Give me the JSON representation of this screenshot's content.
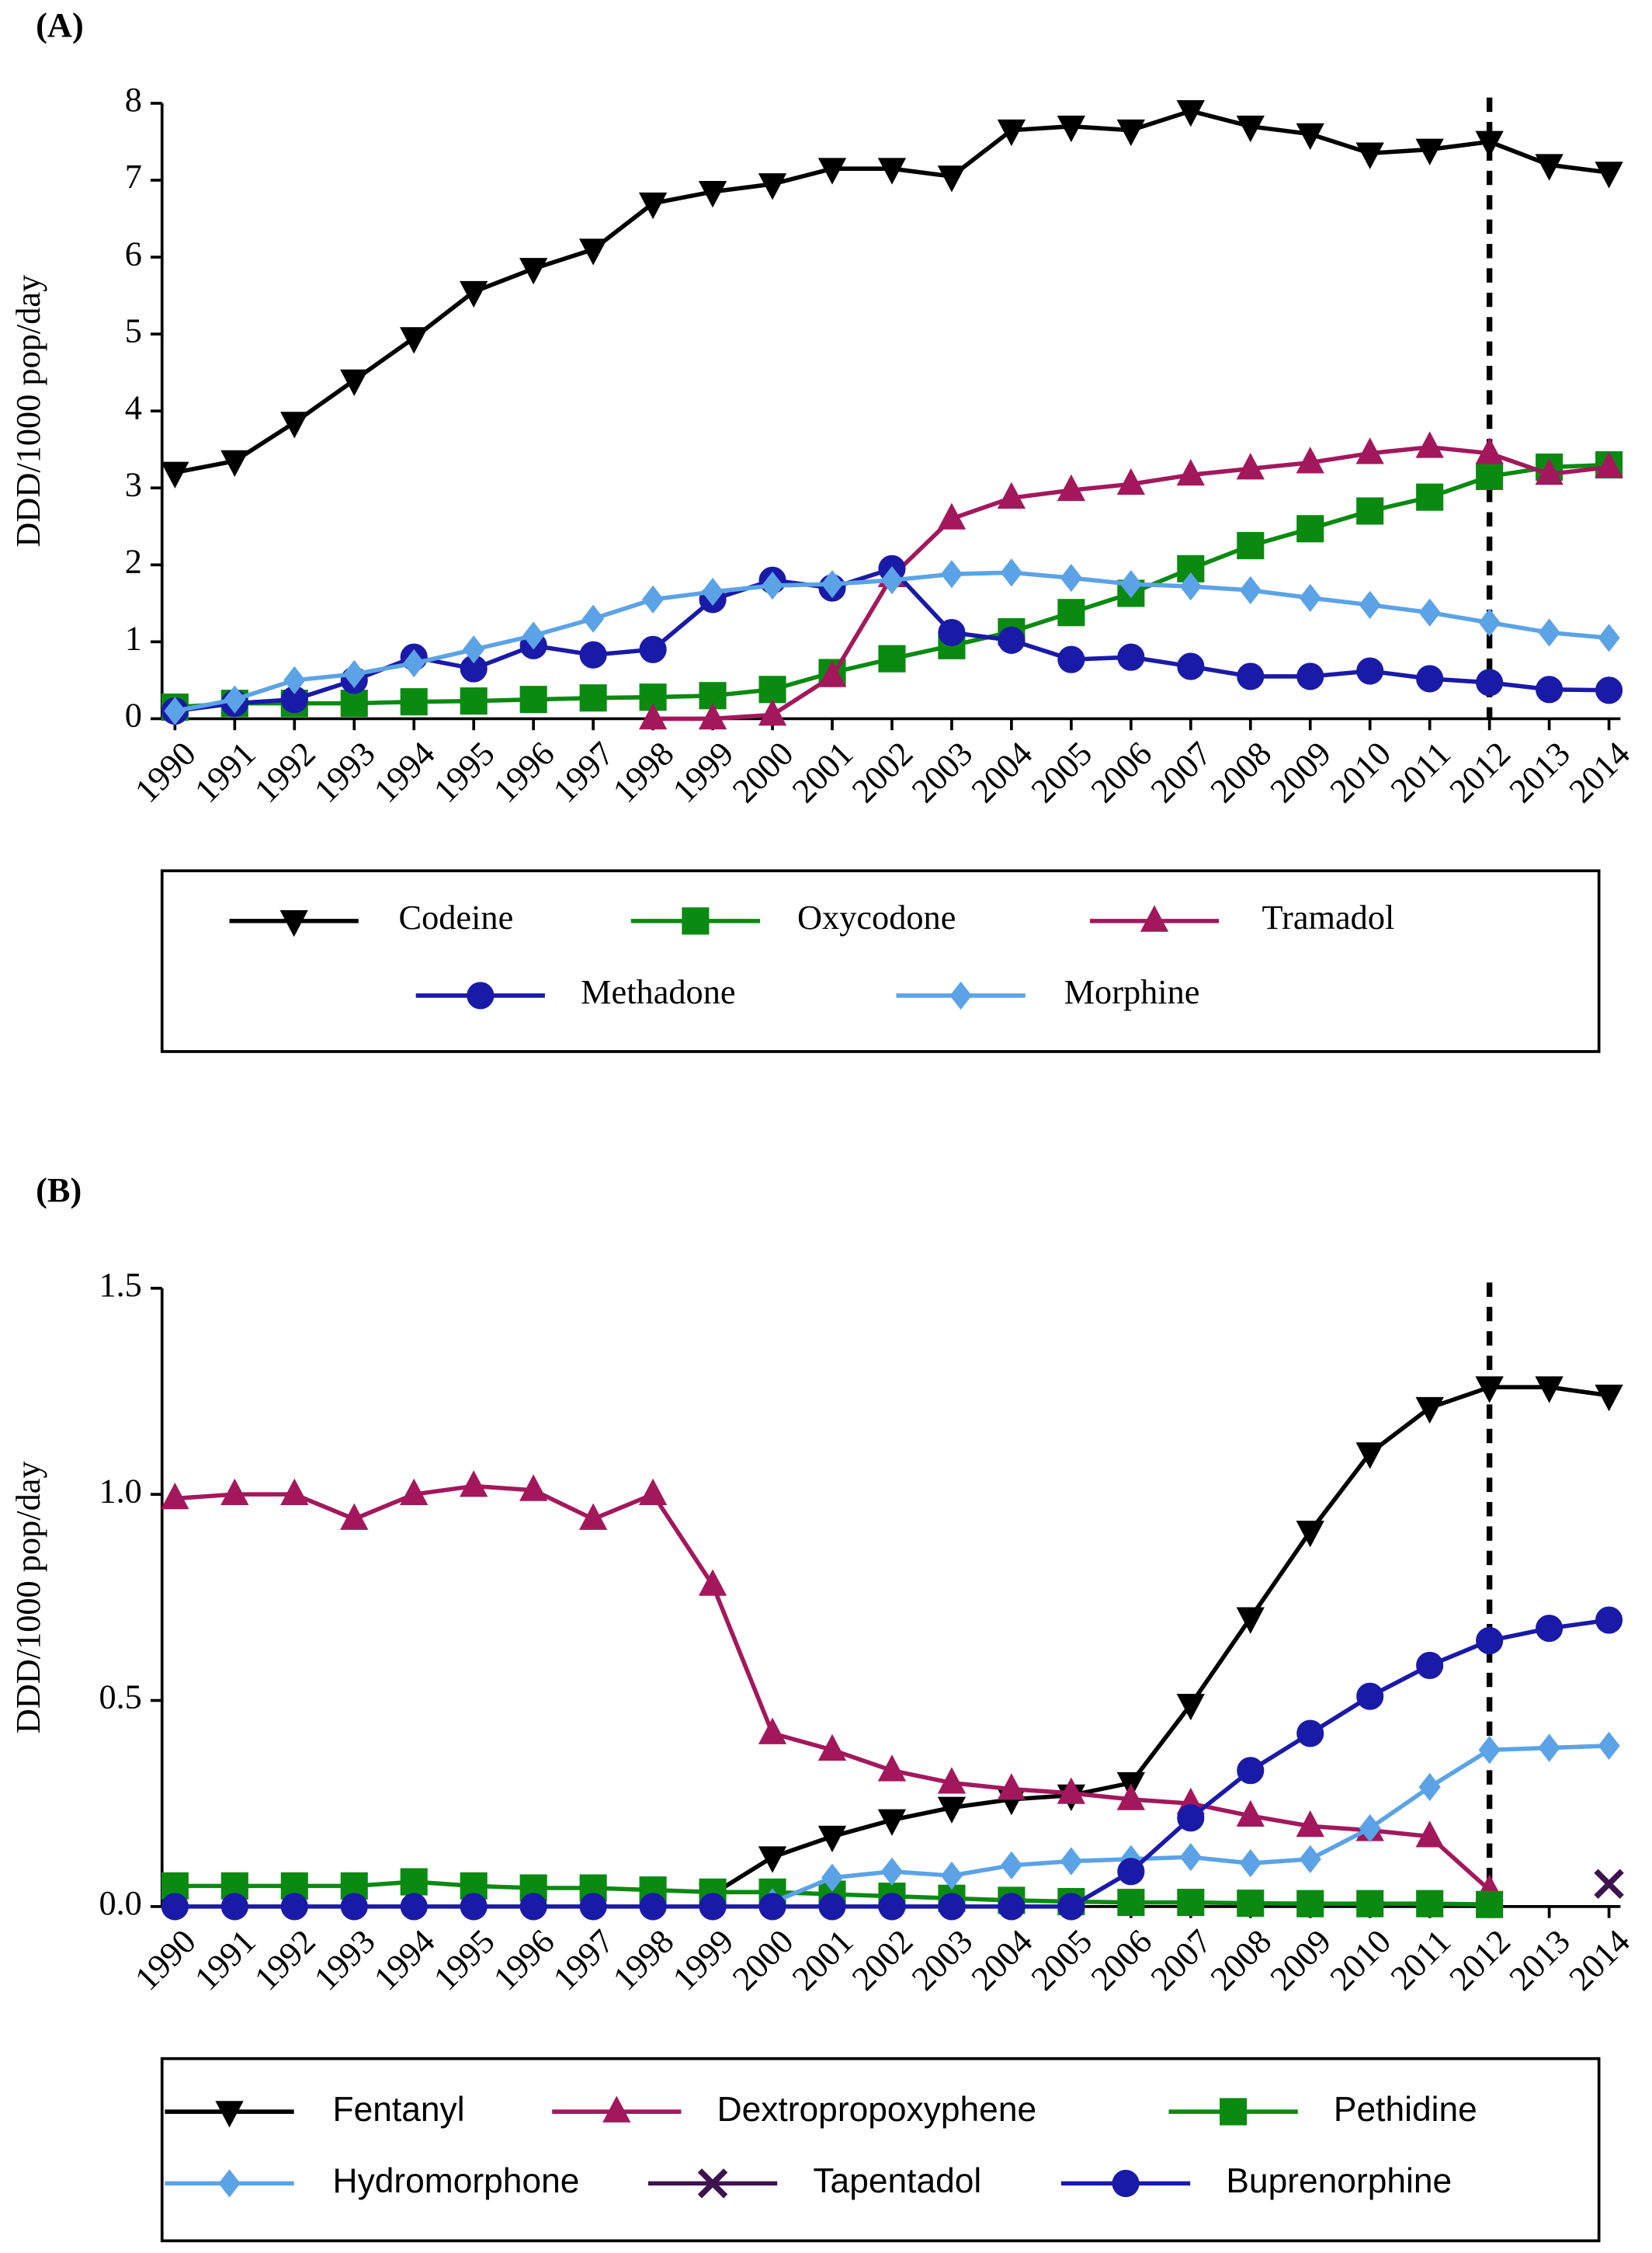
{
  "chart_data": [
    {
      "type": "line",
      "title": "(A)",
      "y_label": "DDD/1000 pop/day",
      "categories": [
        "1990",
        "1991",
        "1992",
        "1993",
        "1994",
        "1995",
        "1996",
        "1997",
        "1998",
        "1999",
        "2000",
        "2001",
        "2002",
        "2003",
        "2004",
        "2005",
        "2006",
        "2007",
        "2008",
        "2009",
        "2010",
        "2011",
        "2012",
        "2013",
        "2014"
      ],
      "ylim": [
        0,
        8
      ],
      "yticks": [
        0,
        1,
        2,
        3,
        4,
        5,
        6,
        7,
        8
      ],
      "reference_line": "2012",
      "series": [
        {
          "name": "Codeine",
          "color": "#000000",
          "marker": "triangle-down",
          "values": [
            3.2,
            3.35,
            3.85,
            4.4,
            4.95,
            5.55,
            5.85,
            6.1,
            6.7,
            6.85,
            6.95,
            7.15,
            7.15,
            7.05,
            7.65,
            7.7,
            7.65,
            7.9,
            7.7,
            7.6,
            7.35,
            7.4,
            7.5,
            7.2,
            7.1
          ]
        },
        {
          "name": "Oxycodone",
          "color": "#0b8a12",
          "marker": "square",
          "values": [
            0.15,
            0.2,
            0.2,
            0.2,
            0.22,
            0.23,
            0.25,
            0.27,
            0.28,
            0.3,
            0.38,
            0.6,
            0.78,
            0.95,
            1.13,
            1.38,
            1.63,
            1.95,
            2.25,
            2.47,
            2.7,
            2.88,
            3.15,
            3.27,
            3.3
          ]
        },
        {
          "name": "Tramadol",
          "color": "#a3185c",
          "marker": "triangle-up",
          "values": [
            null,
            null,
            null,
            null,
            null,
            null,
            null,
            null,
            0,
            0,
            0.05,
            0.55,
            1.85,
            2.6,
            2.87,
            2.97,
            3.05,
            3.17,
            3.25,
            3.33,
            3.45,
            3.53,
            3.45,
            3.18,
            3.27
          ]
        },
        {
          "name": "Methadone",
          "color": "#1a1aa8",
          "marker": "circle",
          "values": [
            0.1,
            0.2,
            0.25,
            0.5,
            0.8,
            0.65,
            0.95,
            0.83,
            0.9,
            1.55,
            1.8,
            1.7,
            1.95,
            1.12,
            1.02,
            0.77,
            0.8,
            0.68,
            0.55,
            0.55,
            0.62,
            0.52,
            0.47,
            0.38,
            0.37
          ]
        },
        {
          "name": "Morphine",
          "color": "#5ba3e6",
          "marker": "diamond",
          "values": [
            0.1,
            0.25,
            0.5,
            0.58,
            0.72,
            0.9,
            1.08,
            1.3,
            1.55,
            1.65,
            1.73,
            1.75,
            1.8,
            1.88,
            1.9,
            1.83,
            1.75,
            1.72,
            1.67,
            1.57,
            1.48,
            1.38,
            1.25,
            1.12,
            1.05
          ]
        }
      ]
    },
    {
      "type": "line",
      "title": "(B)",
      "y_label": "DDD/1000 pop/day",
      "categories": [
        "1990",
        "1991",
        "1992",
        "1993",
        "1994",
        "1995",
        "1996",
        "1997",
        "1998",
        "1999",
        "2000",
        "2001",
        "2002",
        "2003",
        "2004",
        "2005",
        "2006",
        "2007",
        "2008",
        "2009",
        "2010",
        "2011",
        "2012",
        "2013",
        "2014"
      ],
      "ylim": [
        0,
        1.5
      ],
      "yticks": [
        {
          "value": 0,
          "label": "0.0"
        },
        0.5,
        {
          "value": 1,
          "label": "1.0"
        },
        1.5
      ],
      "reference_line": "2012",
      "series": [
        {
          "name": "Fentanyl",
          "color": "#000000",
          "marker": "triangle-down",
          "values": [
            null,
            null,
            null,
            null,
            null,
            null,
            null,
            null,
            null,
            0.03,
            0.12,
            0.17,
            0.21,
            0.24,
            0.26,
            0.27,
            0.3,
            0.49,
            0.7,
            0.91,
            1.1,
            1.21,
            1.26,
            1.26,
            1.24
          ]
        },
        {
          "name": "Dextropropoxyphene",
          "color": "#a3185c",
          "marker": "triangle-up",
          "values": [
            0.99,
            1.0,
            1.0,
            0.94,
            1.0,
            1.02,
            1.01,
            0.94,
            1.0,
            0.78,
            0.42,
            0.38,
            0.33,
            0.3,
            0.285,
            0.275,
            0.26,
            0.25,
            0.22,
            0.195,
            0.185,
            0.17,
            0.04,
            null,
            null
          ]
        },
        {
          "name": "Pethidine",
          "color": "#0b8a12",
          "marker": "square",
          "values": [
            0.05,
            0.05,
            0.05,
            0.05,
            0.06,
            0.05,
            0.045,
            0.045,
            0.04,
            0.035,
            0.035,
            0.03,
            0.025,
            0.02,
            0.015,
            0.012,
            0.01,
            0.01,
            0.008,
            0.007,
            0.007,
            0.007,
            0.005,
            null,
            null
          ]
        },
        {
          "name": "Hydromorphone",
          "color": "#5ba3e6",
          "marker": "diamond",
          "values": [
            null,
            null,
            null,
            null,
            null,
            null,
            null,
            null,
            null,
            null,
            0.01,
            0.07,
            0.085,
            0.075,
            0.1,
            0.11,
            0.115,
            0.12,
            0.105,
            0.115,
            0.19,
            0.29,
            0.38,
            0.385,
            0.39
          ]
        },
        {
          "name": "Tapentadol",
          "color": "#3d1350",
          "marker": "x",
          "values": [
            null,
            null,
            null,
            null,
            null,
            null,
            null,
            null,
            null,
            null,
            null,
            null,
            null,
            null,
            null,
            null,
            null,
            null,
            null,
            null,
            null,
            null,
            null,
            null,
            0.055
          ]
        },
        {
          "name": "Buprenorphine",
          "color": "#1a1aa8",
          "marker": "circle",
          "values": [
            0,
            0,
            0,
            0,
            0,
            0,
            0,
            0,
            0,
            0,
            0,
            0,
            0,
            0,
            0,
            0,
            0.085,
            0.215,
            0.33,
            0.42,
            0.51,
            0.585,
            0.645,
            0.675,
            0.695
          ]
        }
      ]
    }
  ]
}
